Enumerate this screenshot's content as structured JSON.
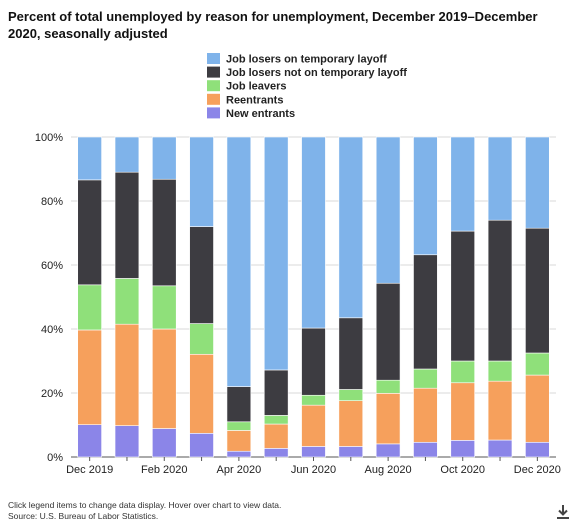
{
  "chart_data": {
    "type": "bar",
    "stacked": true,
    "title": "Percent of total unemployed by reason for unemployment, December 2019–December 2020, seasonally adjusted",
    "categories": [
      "Dec 2019",
      "Jan 2020",
      "Feb 2020",
      "Mar 2020",
      "Apr 2020",
      "May 2020",
      "Jun 2020",
      "Jul 2020",
      "Aug 2020",
      "Sep 2020",
      "Oct 2020",
      "Nov 2020",
      "Dec 2020"
    ],
    "x_tick_labels": [
      "Dec 2019",
      "Feb 2020",
      "Apr 2020",
      "Jun 2020",
      "Aug 2020",
      "Oct 2020",
      "Dec 2020"
    ],
    "y_tick_labels": [
      "0%",
      "20%",
      "40%",
      "60%",
      "80%",
      "100%"
    ],
    "ylim": [
      0,
      100
    ],
    "xlabel": "",
    "ylabel": "",
    "legend_position": "top-center",
    "series": [
      {
        "name": "New entrants",
        "color": "#8b85e8",
        "values": [
          10.1,
          9.8,
          8.9,
          7.4,
          1.8,
          2.7,
          3.3,
          3.3,
          4.1,
          4.6,
          5.2,
          5.3,
          4.6
        ]
      },
      {
        "name": "Reentrants",
        "color": "#f6a05c",
        "values": [
          29.6,
          31.7,
          31.1,
          24.7,
          6.5,
          7.6,
          12.9,
          14.3,
          15.8,
          16.9,
          18.0,
          18.4,
          21.0
        ]
      },
      {
        "name": "Job leavers",
        "color": "#8fe07a",
        "values": [
          14.1,
          14.3,
          13.5,
          9.6,
          2.7,
          2.7,
          3.1,
          3.5,
          4.1,
          6.0,
          6.8,
          6.3,
          6.9
        ]
      },
      {
        "name": "Job losers not on temporary layoff",
        "color": "#3d3c41",
        "values": [
          32.8,
          33.2,
          33.3,
          30.3,
          11.0,
          14.2,
          21.0,
          22.4,
          30.3,
          35.7,
          40.6,
          44.0,
          39.0
        ]
      },
      {
        "name": "Job losers on temporary layoff",
        "color": "#7fb3ea",
        "values": [
          13.4,
          11.0,
          13.2,
          28.0,
          78.0,
          72.8,
          59.7,
          56.5,
          45.7,
          36.8,
          29.4,
          26.0,
          28.5
        ]
      }
    ]
  },
  "legend_order": [
    "Job losers on temporary layoff",
    "Job losers not on temporary layoff",
    "Job leavers",
    "Reentrants",
    "New entrants"
  ],
  "footnote": {
    "line1": "Click legend items to change data display. Hover over chart to view data.",
    "line2": "Source: U.S. Bureau of Labor Statistics."
  },
  "download_icon": "download-icon"
}
